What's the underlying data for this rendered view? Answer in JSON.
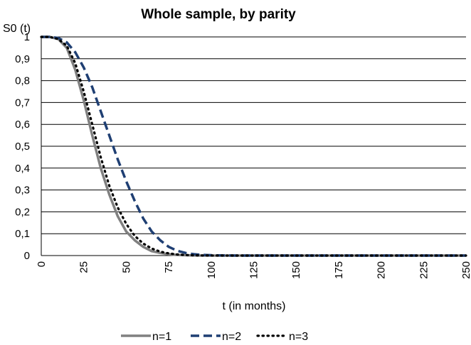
{
  "chart_data": {
    "type": "line",
    "title": "Whole sample, by parity",
    "ylabel": "S0 (t)",
    "xlabel": "t (in months)",
    "xlim": [
      0,
      250
    ],
    "ylim": [
      0,
      1
    ],
    "x_ticks": [
      "0",
      "25",
      "50",
      "75",
      "100",
      "125",
      "150",
      "175",
      "200",
      "225",
      "250"
    ],
    "y_ticks": [
      "0",
      "0,1",
      "0,2",
      "0,3",
      "0,4",
      "0,5",
      "0,6",
      "0,7",
      "0,8",
      "0,9",
      "1"
    ],
    "grid": true,
    "legend_position": "bottom",
    "x": [
      0,
      5,
      10,
      15,
      20,
      25,
      30,
      35,
      40,
      45,
      50,
      55,
      60,
      65,
      70,
      75,
      80,
      85,
      90,
      95,
      100,
      105,
      110,
      115,
      120,
      125,
      150,
      175,
      200,
      225,
      250
    ],
    "series": [
      {
        "name": "n=1",
        "color": "#808080",
        "dash": "solid",
        "values": [
          1.0,
          1.0,
          0.99,
          0.95,
          0.85,
          0.71,
          0.55,
          0.4,
          0.28,
          0.18,
          0.11,
          0.07,
          0.04,
          0.02,
          0.012,
          0.006,
          0.003,
          0.0015,
          0.0005,
          0.0002,
          0.0001,
          0,
          0,
          0,
          0,
          0,
          0,
          0,
          0,
          0,
          0
        ]
      },
      {
        "name": "n=2",
        "color": "#1f3f73",
        "dash": "dashed",
        "values": [
          1.0,
          1.0,
          0.995,
          0.975,
          0.93,
          0.86,
          0.77,
          0.66,
          0.55,
          0.44,
          0.34,
          0.25,
          0.17,
          0.11,
          0.07,
          0.04,
          0.022,
          0.012,
          0.006,
          0.003,
          0.0015,
          0.0007,
          0.0003,
          0.0001,
          0,
          0,
          0,
          0,
          0,
          0,
          0
        ]
      },
      {
        "name": "n=3",
        "color": "#000000",
        "dash": "dotted",
        "values": [
          1.0,
          1.0,
          0.99,
          0.96,
          0.88,
          0.75,
          0.6,
          0.45,
          0.32,
          0.22,
          0.145,
          0.09,
          0.055,
          0.032,
          0.018,
          0.01,
          0.005,
          0.0025,
          0.001,
          0.0005,
          0.0002,
          0.0001,
          0,
          0,
          0,
          0,
          0,
          0,
          0,
          0,
          0
        ]
      }
    ]
  }
}
